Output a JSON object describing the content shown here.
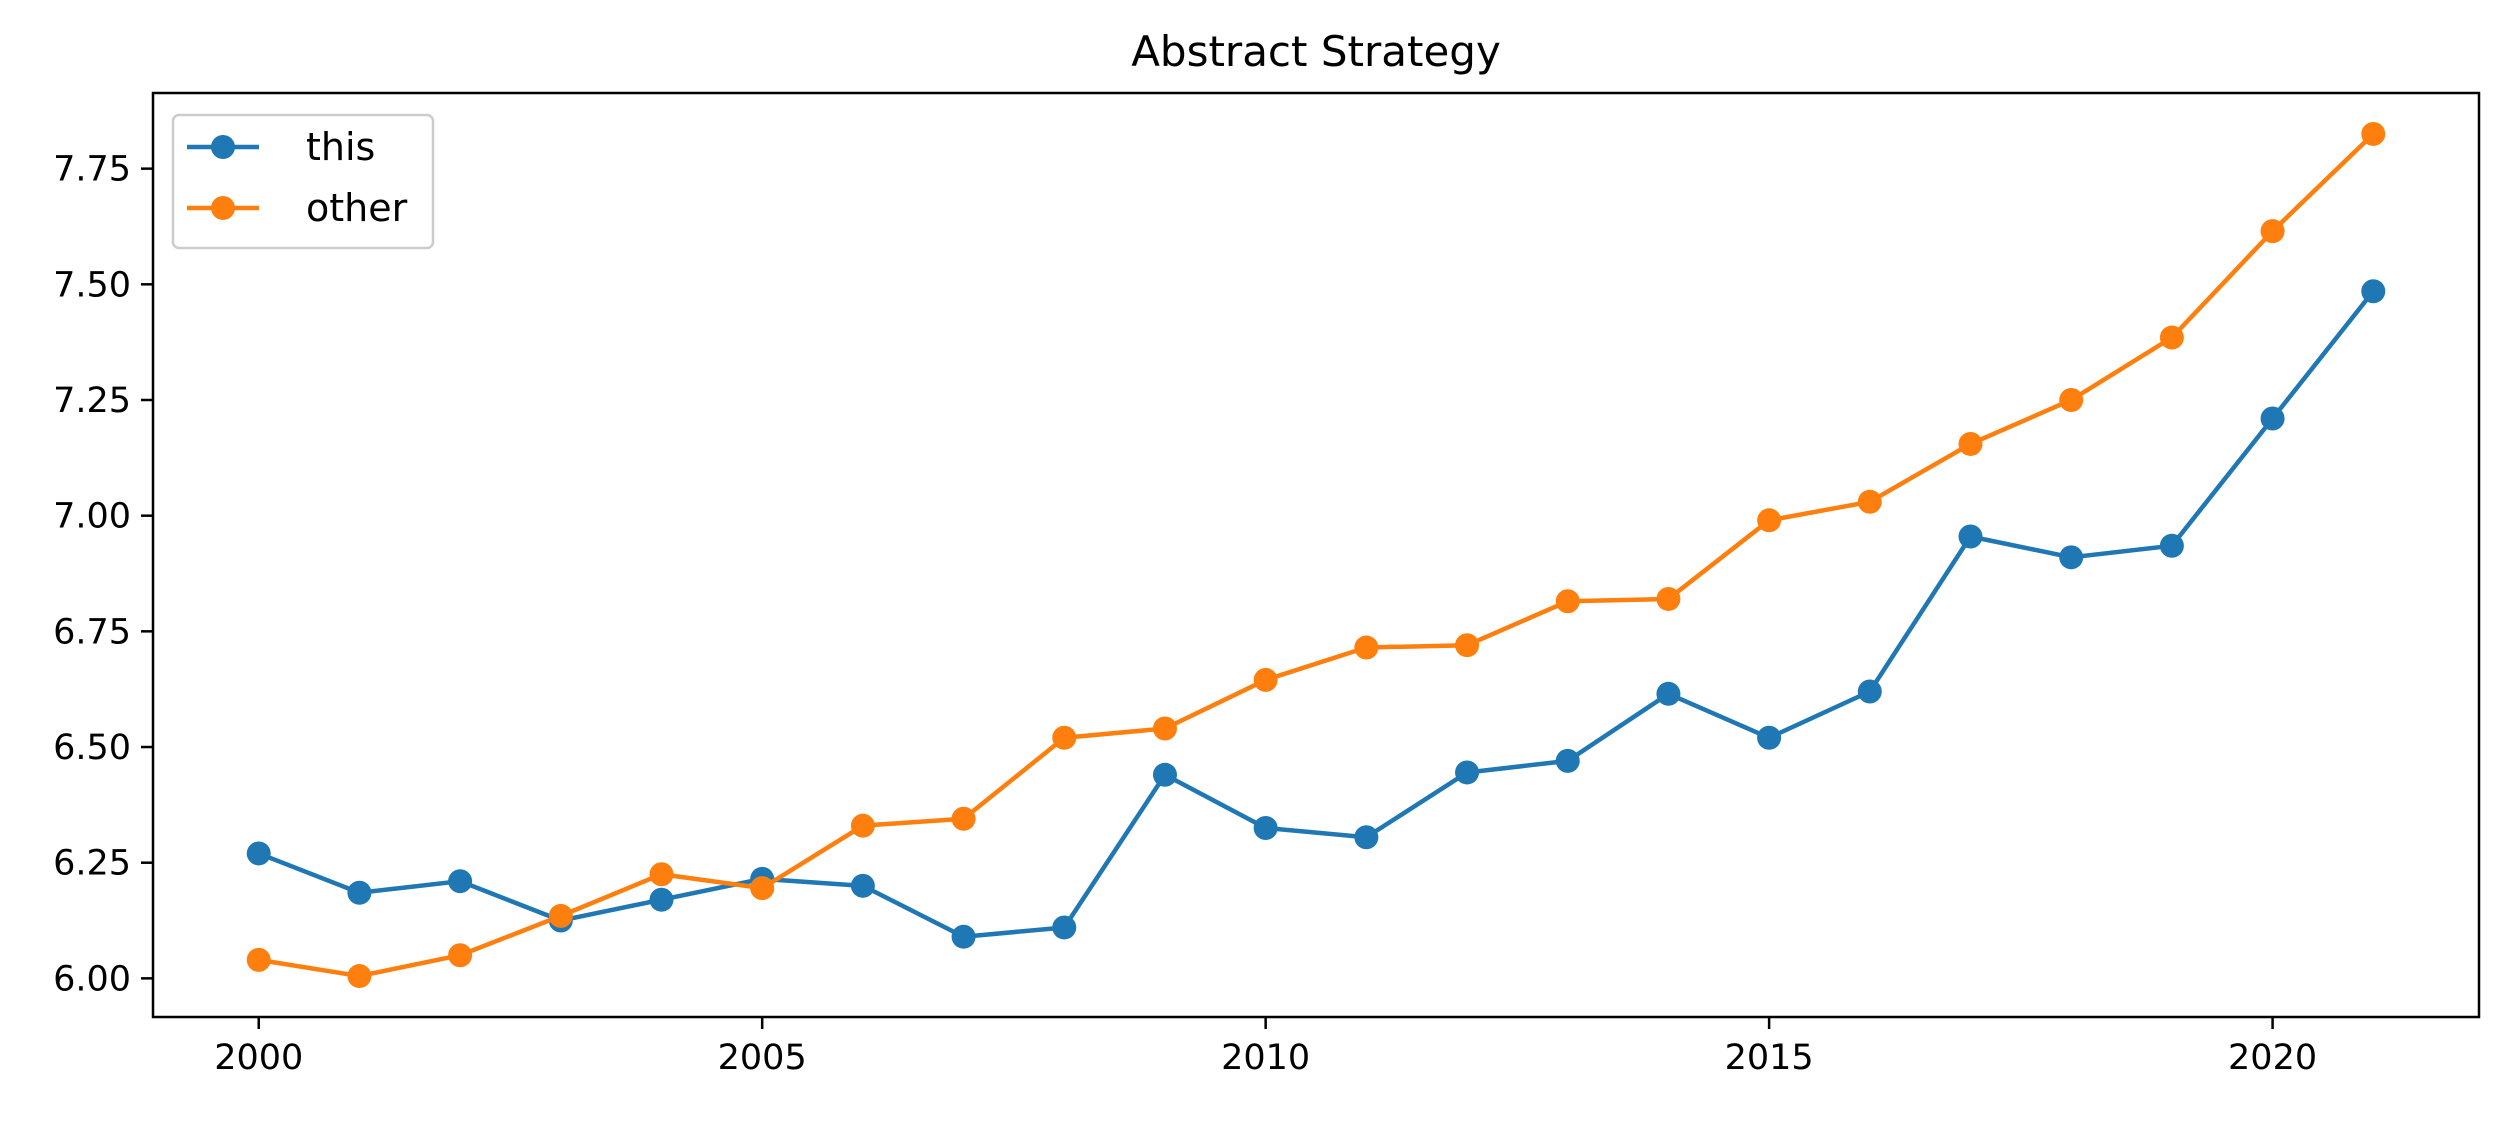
{
  "chart_data": {
    "type": "line",
    "title": "Abstract Strategy",
    "xlabel": "",
    "ylabel": "",
    "x": [
      2000,
      2001,
      2002,
      2003,
      2004,
      2005,
      2006,
      2007,
      2008,
      2009,
      2010,
      2011,
      2012,
      2013,
      2014,
      2015,
      2016,
      2017,
      2018,
      2019,
      2020,
      2021
    ],
    "series": [
      {
        "name": "this",
        "color": "#1f77b4",
        "values": [
          6.27,
          6.185,
          6.21,
          6.125,
          6.17,
          6.215,
          6.2,
          6.09,
          6.11,
          6.44,
          6.325,
          6.305,
          6.445,
          6.47,
          6.615,
          6.52,
          6.62,
          6.955,
          6.91,
          6.935,
          7.21,
          7.485
        ]
      },
      {
        "name": "other",
        "color": "#ff7f0e",
        "values": [
          6.04,
          6.005,
          6.05,
          6.135,
          6.225,
          6.195,
          6.33,
          6.345,
          6.52,
          6.54,
          6.645,
          6.715,
          6.72,
          6.815,
          6.82,
          6.99,
          7.03,
          7.155,
          7.25,
          7.385,
          7.615,
          7.825
        ]
      }
    ],
    "xlim": [
      1998.95,
      2022.05
    ],
    "ylim": [
      5.9165,
      7.9135
    ],
    "xticks": [
      2000,
      2005,
      2010,
      2015,
      2020
    ],
    "xtick_labels": [
      "2000",
      "2005",
      "2010",
      "2015",
      "2020"
    ],
    "yticks": [
      6.0,
      6.25,
      6.5,
      6.75,
      7.0,
      7.25,
      7.5,
      7.75
    ],
    "ytick_labels": [
      "6.00",
      "6.25",
      "6.50",
      "6.75",
      "7.00",
      "7.25",
      "7.50",
      "7.75"
    ],
    "grid": false,
    "legend_position": "top-left"
  }
}
